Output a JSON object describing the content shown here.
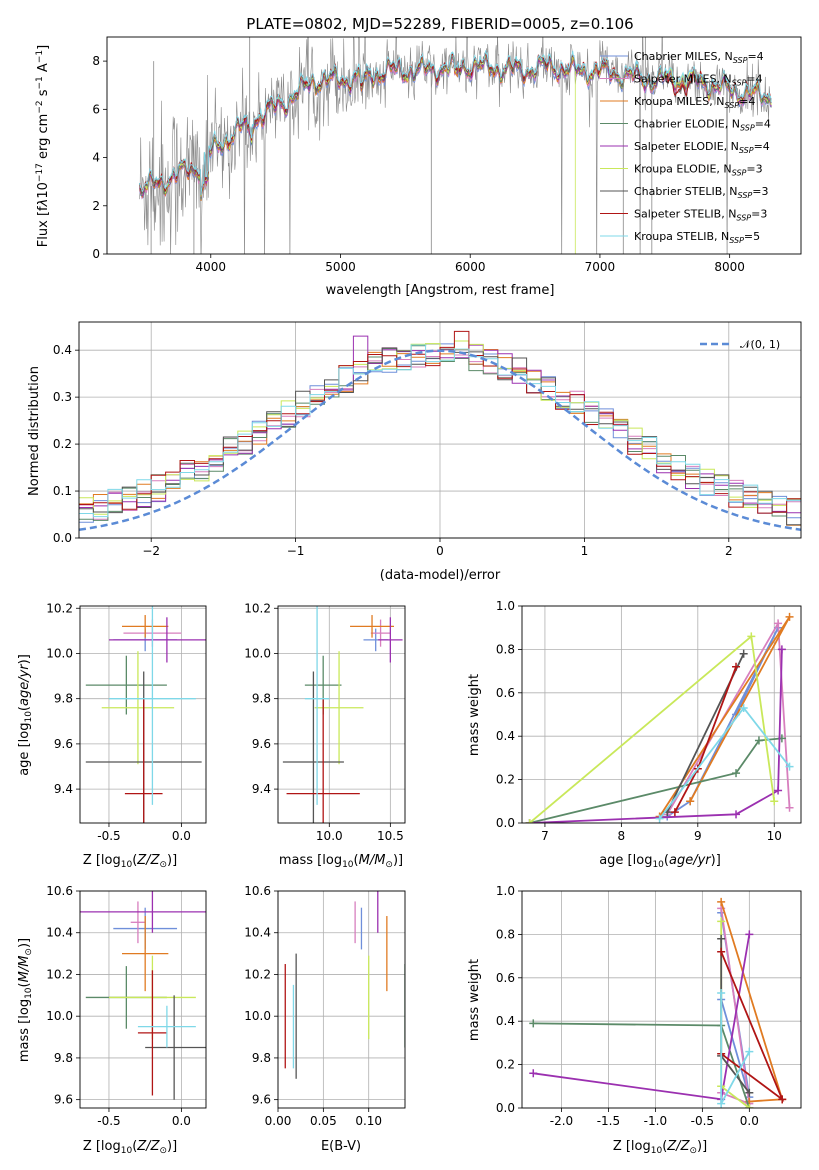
{
  "title": "PLATE=0802, MJD=52289, FIBERID=0005, z=0.106",
  "colors": {
    "Chabrier MILES": "#6f8fda",
    "Salpeter MILES": "#d77fbe",
    "Kroupa MILES": "#e07b22",
    "Chabrier ELODIE": "#5b8a68",
    "Salpeter ELODIE": "#9b30b0",
    "Kroupa ELODIE": "#c9e85a",
    "Chabrier STELIB": "#555555",
    "Salpeter STELIB": "#b01515",
    "Kroupa STELIB": "#7fd8e8",
    "data": "#888888",
    "normal": "#5b8bd6"
  },
  "legend_spectrum": [
    "Chabrier MILES, N_SSP=4",
    "Salpeter MILES, N_SSP=4",
    "Kroupa MILES, N_SSP=4",
    "Chabrier ELODIE, N_SSP=4",
    "Salpeter ELODIE, N_SSP=4",
    "Kroupa ELODIE, N_SSP=3",
    "Chabrier STELIB, N_SSP=3",
    "Salpeter STELIB, N_SSP=3",
    "Kroupa STELIB, N_SSP=5"
  ],
  "legend_hist": "𝒩(0, 1)",
  "chart_data": [
    {
      "type": "line",
      "title": "PLATE=0802, MJD=52289, FIBERID=0005, z=0.106",
      "xlabel": "wavelength [Angstrom, rest frame]",
      "ylabel": "Flux [f_λ 10^-17 erg cm^-2 s^-1 A^-1]",
      "xlim": [
        3200,
        8550
      ],
      "ylim": [
        0,
        9
      ],
      "xticks": [
        4000,
        5000,
        6000,
        7000,
        8000
      ],
      "yticks": [
        0,
        2,
        4,
        6,
        8
      ],
      "model_knots": [
        [
          3450,
          2.7
        ],
        [
          3600,
          2.9
        ],
        [
          3700,
          3.2
        ],
        [
          3800,
          3.4
        ],
        [
          3900,
          3.6
        ],
        [
          4000,
          4.2
        ],
        [
          4200,
          5.1
        ],
        [
          4400,
          5.8
        ],
        [
          4600,
          6.4
        ],
        [
          4800,
          7.2
        ],
        [
          5000,
          7.2
        ],
        [
          5200,
          7.4
        ],
        [
          5400,
          7.6
        ],
        [
          5600,
          7.6
        ],
        [
          5800,
          7.7
        ],
        [
          6000,
          7.8
        ],
        [
          6200,
          7.7
        ],
        [
          6400,
          7.6
        ],
        [
          6600,
          7.8
        ],
        [
          6800,
          7.6
        ],
        [
          7000,
          7.6
        ],
        [
          7200,
          7.4
        ],
        [
          7400,
          7.2
        ],
        [
          7600,
          7.3
        ],
        [
          7800,
          7.1
        ],
        [
          8000,
          6.8
        ],
        [
          8200,
          6.6
        ],
        [
          8320,
          6.5
        ]
      ]
    },
    {
      "type": "bar",
      "xlabel": "(data-model)/error",
      "ylabel": "Normed distribution",
      "xlim": [
        -2.5,
        2.5
      ],
      "ylim": [
        0,
        0.46
      ],
      "xticks": [
        -2,
        -1,
        0,
        1,
        2
      ],
      "yticks": [
        0.0,
        0.1,
        0.2,
        0.3,
        0.4
      ],
      "bin_width": 0.1,
      "reference": "N(0,1)"
    },
    {
      "type": "scatter",
      "xlabel": "Z [log10(Z/Z_sun)]",
      "ylabel": "age [log10(age/yr)]",
      "xlim": [
        -0.7,
        0.17
      ],
      "ylim": [
        9.25,
        10.21
      ],
      "xticks": [
        -0.5,
        0.0
      ],
      "yticks": [
        9.4,
        9.6,
        9.8,
        10.0,
        10.2
      ],
      "points": [
        {
          "series": "Chabrier MILES",
          "x": -0.25,
          "xerr": [
            0.22,
            0.22
          ],
          "y": 10.06,
          "yerr": [
            0.05,
            0.05
          ]
        },
        {
          "series": "Salpeter MILES",
          "x": -0.2,
          "xerr": [
            0.2,
            0.2
          ],
          "y": 10.09,
          "yerr": [
            0.06,
            0.06
          ]
        },
        {
          "series": "Kroupa MILES",
          "x": -0.25,
          "xerr": [
            0.16,
            0.16
          ],
          "y": 10.12,
          "yerr": [
            0.05,
            0.05
          ]
        },
        {
          "series": "Chabrier ELODIE",
          "x": -0.38,
          "xerr": [
            0.28,
            0.28
          ],
          "y": 9.86,
          "yerr": [
            0.13,
            0.13
          ]
        },
        {
          "series": "Salpeter ELODIE",
          "x": -0.1,
          "xerr": [
            0.4,
            0.4
          ],
          "y": 10.06,
          "yerr": [
            0.1,
            0.1
          ]
        },
        {
          "series": "Kroupa ELODIE",
          "x": -0.3,
          "xerr": [
            0.25,
            0.25
          ],
          "y": 9.76,
          "yerr": [
            0.25,
            0.25
          ]
        },
        {
          "series": "Chabrier STELIB",
          "x": -0.26,
          "xerr": [
            0.4,
            0.4
          ],
          "y": 9.52,
          "yerr": [
            0.4,
            0.4
          ]
        },
        {
          "series": "Salpeter STELIB",
          "x": -0.26,
          "xerr": [
            0.13,
            0.13
          ],
          "y": 9.38,
          "yerr": [
            0.42,
            0.42
          ]
        },
        {
          "series": "Kroupa STELIB",
          "x": -0.2,
          "xerr": [
            0.3,
            0.3
          ],
          "y": 9.8,
          "yerr": [
            0.47,
            0.47
          ]
        }
      ]
    },
    {
      "type": "scatter",
      "xlabel": "mass [log10(M/M_sun)]",
      "ylabel": "",
      "xlim": [
        9.58,
        10.62
      ],
      "ylim": [
        9.25,
        10.21
      ],
      "xticks": [
        9.0,
        10.0,
        10.5
      ],
      "yticks": [
        9.4,
        9.6,
        9.8,
        10.0,
        10.2
      ],
      "points": [
        {
          "series": "Chabrier MILES",
          "x": 10.38,
          "xerr": [
            0.1,
            0.1
          ],
          "y": 10.06,
          "yerr": [
            0.05,
            0.05
          ]
        },
        {
          "series": "Salpeter MILES",
          "x": 10.42,
          "xerr": [
            0.08,
            0.08
          ],
          "y": 10.09,
          "yerr": [
            0.06,
            0.06
          ]
        },
        {
          "series": "Kroupa MILES",
          "x": 10.35,
          "xerr": [
            0.18,
            0.18
          ],
          "y": 10.12,
          "yerr": [
            0.05,
            0.05
          ]
        },
        {
          "series": "Chabrier ELODIE",
          "x": 9.95,
          "xerr": [
            0.15,
            0.15
          ],
          "y": 9.86,
          "yerr": [
            0.13,
            0.13
          ]
        },
        {
          "series": "Salpeter ELODIE",
          "x": 10.5,
          "xerr": [
            0.1,
            0.1
          ],
          "y": 10.06,
          "yerr": [
            0.1,
            0.1
          ]
        },
        {
          "series": "Kroupa ELODIE",
          "x": 10.08,
          "xerr": [
            0.2,
            0.2
          ],
          "y": 9.76,
          "yerr": [
            0.25,
            0.25
          ]
        },
        {
          "series": "Chabrier STELIB",
          "x": 9.87,
          "xerr": [
            0.25,
            0.25
          ],
          "y": 9.52,
          "yerr": [
            0.4,
            0.4
          ]
        },
        {
          "series": "Salpeter STELIB",
          "x": 9.95,
          "xerr": [
            0.3,
            0.3
          ],
          "y": 9.38,
          "yerr": [
            0.42,
            0.42
          ]
        },
        {
          "series": "Kroupa STELIB",
          "x": 9.9,
          "xerr": [
            0.1,
            0.1
          ],
          "y": 9.8,
          "yerr": [
            0.47,
            0.47
          ]
        }
      ]
    },
    {
      "type": "line",
      "xlabel": "age [log10(age/yr)]",
      "ylabel": "mass weight",
      "xlim": [
        6.7,
        10.35
      ],
      "ylim": [
        0,
        1
      ],
      "xticks": [
        7,
        8,
        9,
        10
      ],
      "yticks": [
        0.0,
        0.2,
        0.4,
        0.6,
        0.8,
        1.0
      ],
      "series": [
        {
          "name": "Chabrier MILES",
          "points": [
            [
              8.6,
              0.03
            ],
            [
              8.9,
              0.1
            ],
            [
              10.05,
              0.9
            ],
            [
              9.5,
              0.5
            ]
          ]
        },
        {
          "name": "Salpeter MILES",
          "points": [
            [
              8.6,
              0.04
            ],
            [
              10.05,
              0.92
            ],
            [
              10.2,
              0.07
            ]
          ]
        },
        {
          "name": "Kroupa MILES",
          "points": [
            [
              8.5,
              0.03
            ],
            [
              10.2,
              0.95
            ],
            [
              8.9,
              0.1
            ]
          ]
        },
        {
          "name": "Chabrier ELODIE",
          "points": [
            [
              6.8,
              0.0
            ],
            [
              9.5,
              0.23
            ],
            [
              9.8,
              0.38
            ],
            [
              10.1,
              0.39
            ]
          ]
        },
        {
          "name": "Salpeter ELODIE",
          "points": [
            [
              6.8,
              0.0
            ],
            [
              9.5,
              0.04
            ],
            [
              10.05,
              0.15
            ],
            [
              10.1,
              0.8
            ]
          ]
        },
        {
          "name": "Kroupa ELODIE",
          "points": [
            [
              6.8,
              0.0
            ],
            [
              9.7,
              0.86
            ],
            [
              10.0,
              0.1
            ]
          ]
        },
        {
          "name": "Chabrier STELIB",
          "points": [
            [
              8.6,
              0.05
            ],
            [
              9.6,
              0.78
            ]
          ]
        },
        {
          "name": "Salpeter STELIB",
          "points": [
            [
              8.7,
              0.05
            ],
            [
              9.0,
              0.25
            ],
            [
              9.5,
              0.72
            ]
          ]
        },
        {
          "name": "Kroupa STELIB",
          "points": [
            [
              8.5,
              0.02
            ],
            [
              9.6,
              0.53
            ],
            [
              10.2,
              0.26
            ]
          ]
        }
      ]
    },
    {
      "type": "scatter",
      "xlabel": "Z [log10(Z/Z_sun)]",
      "ylabel": "mass [log10(M/M_sun)]",
      "xlim": [
        -0.7,
        0.17
      ],
      "ylim": [
        9.56,
        10.6
      ],
      "xticks": [
        -0.5,
        0.0
      ],
      "yticks": [
        9.6,
        9.8,
        10.0,
        10.2,
        10.4,
        10.6
      ],
      "points": [
        {
          "series": "Chabrier MILES",
          "x": -0.25,
          "xerr": [
            0.22,
            0.22
          ],
          "y": 10.42,
          "yerr": [
            0.1,
            0.1
          ]
        },
        {
          "series": "Salpeter MILES",
          "x": -0.3,
          "xerr": [
            0.05,
            0.05
          ],
          "y": 10.45,
          "yerr": [
            0.1,
            0.1
          ]
        },
        {
          "series": "Kroupa MILES",
          "x": -0.25,
          "xerr": [
            0.16,
            0.16
          ],
          "y": 10.3,
          "yerr": [
            0.18,
            0.18
          ]
        },
        {
          "series": "Chabrier ELODIE",
          "x": -0.38,
          "xerr": [
            0.28,
            0.28
          ],
          "y": 10.09,
          "yerr": [
            0.15,
            0.15
          ]
        },
        {
          "series": "Salpeter ELODIE",
          "x": -0.2,
          "xerr": [
            0.5,
            0.5
          ],
          "y": 10.5,
          "yerr": [
            0.1,
            0.1
          ]
        },
        {
          "series": "Kroupa ELODIE",
          "x": -0.2,
          "xerr": [
            0.3,
            0.3
          ],
          "y": 10.09,
          "yerr": [
            0.2,
            0.2
          ]
        },
        {
          "series": "Chabrier STELIB",
          "x": -0.05,
          "xerr": [
            0.2,
            0.4
          ],
          "y": 9.85,
          "yerr": [
            0.25,
            0.25
          ]
        },
        {
          "series": "Salpeter STELIB",
          "x": -0.2,
          "xerr": [
            0.1,
            0.1
          ],
          "y": 9.92,
          "yerr": [
            0.3,
            0.3
          ]
        },
        {
          "series": "Kroupa STELIB",
          "x": -0.1,
          "xerr": [
            0.2,
            0.2
          ],
          "y": 9.95,
          "yerr": [
            0.1,
            0.1
          ]
        }
      ]
    },
    {
      "type": "scatter",
      "xlabel": "E(B-V)",
      "ylabel": "",
      "xlim": [
        0.0,
        0.14
      ],
      "ylim": [
        9.56,
        10.6
      ],
      "xticks": [
        0.0,
        0.05,
        0.1
      ],
      "yticks": [
        9.6,
        9.8,
        10.0,
        10.2,
        10.4,
        10.6
      ],
      "points": [
        {
          "series": "Chabrier MILES",
          "x": 0.092,
          "y": 10.42,
          "yerr": [
            0.1,
            0.1
          ]
        },
        {
          "series": "Salpeter MILES",
          "x": 0.085,
          "y": 10.45,
          "yerr": [
            0.1,
            0.1
          ]
        },
        {
          "series": "Kroupa MILES",
          "x": 0.12,
          "y": 10.3,
          "yerr": [
            0.18,
            0.18
          ]
        },
        {
          "series": "Chabrier ELODIE",
          "x": 0.14,
          "y": 10.05,
          "yerr": [
            0.2,
            0.2
          ]
        },
        {
          "series": "Salpeter ELODIE",
          "x": 0.11,
          "y": 10.5,
          "yerr": [
            0.1,
            0.1
          ]
        },
        {
          "series": "Kroupa ELODIE",
          "x": 0.1,
          "y": 10.09,
          "yerr": [
            0.2,
            0.2
          ]
        },
        {
          "series": "Chabrier STELIB",
          "x": 0.02,
          "y": 10.0,
          "yerr": [
            0.3,
            0.3
          ]
        },
        {
          "series": "Salpeter STELIB",
          "x": 0.008,
          "y": 10.0,
          "yerr": [
            0.25,
            0.25
          ]
        },
        {
          "series": "Kroupa STELIB",
          "x": 0.017,
          "y": 9.95,
          "yerr": [
            0.2,
            0.2
          ]
        }
      ]
    },
    {
      "type": "line",
      "xlabel": "Z [log10(Z/Z_sun)]",
      "ylabel": "mass weight",
      "xlim": [
        -2.42,
        0.55
      ],
      "ylim": [
        0,
        1
      ],
      "xticks": [
        -2.0,
        -1.5,
        -1.0,
        -0.5,
        0.0
      ],
      "yticks": [
        0.0,
        0.2,
        0.4,
        0.6,
        0.8,
        1.0
      ],
      "series": [
        {
          "name": "Chabrier MILES",
          "points": [
            [
              -0.3,
              0.9
            ],
            [
              0.0,
              0.05
            ],
            [
              -0.3,
              0.5
            ]
          ]
        },
        {
          "name": "Salpeter MILES",
          "points": [
            [
              -0.3,
              0.92
            ],
            [
              0.0,
              0.02
            ],
            [
              -0.3,
              0.07
            ]
          ]
        },
        {
          "name": "Kroupa MILES",
          "points": [
            [
              -0.3,
              0.95
            ],
            [
              0.35,
              0.04
            ],
            [
              0.0,
              0.03
            ]
          ]
        },
        {
          "name": "Chabrier ELODIE",
          "points": [
            [
              -2.3,
              0.39
            ],
            [
              -0.3,
              0.38
            ],
            [
              0.0,
              0.0
            ]
          ]
        },
        {
          "name": "Salpeter ELODIE",
          "points": [
            [
              -2.3,
              0.16
            ],
            [
              -0.3,
              0.04
            ],
            [
              0.0,
              0.8
            ]
          ]
        },
        {
          "name": "Kroupa ELODIE",
          "points": [
            [
              -0.3,
              0.86
            ],
            [
              -0.3,
              0.1
            ],
            [
              0.0,
              0.0
            ]
          ]
        },
        {
          "name": "Chabrier STELIB",
          "points": [
            [
              -0.3,
              0.78
            ],
            [
              -0.3,
              0.24
            ],
            [
              0.0,
              0.07
            ]
          ]
        },
        {
          "name": "Salpeter STELIB",
          "points": [
            [
              -0.3,
              0.72
            ],
            [
              0.35,
              0.04
            ],
            [
              -0.3,
              0.25
            ]
          ]
        },
        {
          "name": "Kroupa STELIB",
          "points": [
            [
              -0.3,
              0.53
            ],
            [
              -0.3,
              0.02
            ],
            [
              0.0,
              0.26
            ]
          ]
        }
      ]
    }
  ]
}
